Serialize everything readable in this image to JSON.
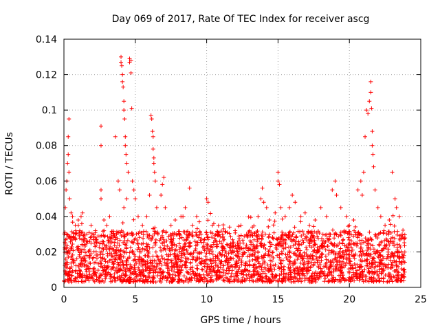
{
  "chart_data": {
    "type": "scatter",
    "title": "Day 069 of 2017, Rate Of TEC Index for receiver ascg",
    "xlabel": "GPS time / hours",
    "ylabel": "ROTI / TECUs",
    "xlim": [
      0,
      25
    ],
    "ylim": [
      0,
      0.14
    ],
    "xticks": [
      0,
      5,
      10,
      15,
      20,
      25
    ],
    "yticks": [
      0,
      0.02,
      0.04,
      0.06,
      0.08,
      0.1,
      0.12,
      0.14
    ],
    "xtick_labels": [
      "0",
      "5",
      "10",
      "15",
      "20",
      "25"
    ],
    "ytick_labels": [
      "0",
      "0.02",
      "0.04",
      "0.06",
      "0.08",
      "0.1",
      "0.12",
      "0.14"
    ],
    "grid": true,
    "marker": "plus",
    "color": "#ff0000",
    "series": [
      {
        "name": "ROTI",
        "points": [
          [
            0.1,
            0.045
          ],
          [
            0.15,
            0.055
          ],
          [
            0.2,
            0.06
          ],
          [
            0.25,
            0.07
          ],
          [
            0.3,
            0.075
          ],
          [
            0.3,
            0.085
          ],
          [
            0.35,
            0.095
          ],
          [
            0.35,
            0.065
          ],
          [
            0.4,
            0.05
          ],
          [
            0.5,
            0.042
          ],
          [
            0.6,
            0.04
          ],
          [
            0.8,
            0.035
          ],
          [
            1.0,
            0.038
          ],
          [
            1.2,
            0.04
          ],
          [
            1.3,
            0.042
          ],
          [
            1.6,
            0.03
          ],
          [
            1.9,
            0.035
          ],
          [
            2.2,
            0.032
          ],
          [
            2.6,
            0.091
          ],
          [
            2.6,
            0.08
          ],
          [
            2.6,
            0.055
          ],
          [
            2.6,
            0.05
          ],
          [
            2.8,
            0.038
          ],
          [
            3.0,
            0.035
          ],
          [
            3.2,
            0.04
          ],
          [
            3.6,
            0.085
          ],
          [
            3.8,
            0.06
          ],
          [
            3.9,
            0.055
          ],
          [
            4.0,
            0.13
          ],
          [
            4.0,
            0.127
          ],
          [
            4.05,
            0.125
          ],
          [
            4.1,
            0.12
          ],
          [
            4.1,
            0.116
          ],
          [
            4.15,
            0.113
          ],
          [
            4.2,
            0.105
          ],
          [
            4.2,
            0.1
          ],
          [
            4.25,
            0.095
          ],
          [
            4.3,
            0.085
          ],
          [
            4.3,
            0.08
          ],
          [
            4.35,
            0.075
          ],
          [
            4.4,
            0.07
          ],
          [
            4.5,
            0.065
          ],
          [
            4.4,
            0.05
          ],
          [
            4.2,
            0.045
          ],
          [
            4.6,
            0.129
          ],
          [
            4.6,
            0.127
          ],
          [
            4.7,
            0.128
          ],
          [
            4.7,
            0.121
          ],
          [
            4.75,
            0.101
          ],
          [
            4.8,
            0.06
          ],
          [
            4.9,
            0.055
          ],
          [
            5.0,
            0.05
          ],
          [
            5.2,
            0.04
          ],
          [
            5.5,
            0.035
          ],
          [
            5.8,
            0.04
          ],
          [
            6.0,
            0.052
          ],
          [
            6.1,
            0.097
          ],
          [
            6.15,
            0.095
          ],
          [
            6.2,
            0.088
          ],
          [
            6.25,
            0.085
          ],
          [
            6.25,
            0.078
          ],
          [
            6.3,
            0.073
          ],
          [
            6.3,
            0.07
          ],
          [
            6.35,
            0.065
          ],
          [
            6.4,
            0.06
          ],
          [
            6.5,
            0.045
          ],
          [
            6.8,
            0.052
          ],
          [
            6.9,
            0.058
          ],
          [
            7.0,
            0.062
          ],
          [
            7.1,
            0.045
          ],
          [
            7.5,
            0.035
          ],
          [
            7.8,
            0.038
          ],
          [
            8.2,
            0.04
          ],
          [
            8.5,
            0.045
          ],
          [
            8.8,
            0.056
          ],
          [
            9.0,
            0.035
          ],
          [
            9.3,
            0.04
          ],
          [
            9.6,
            0.03
          ],
          [
            10.0,
            0.05
          ],
          [
            10.1,
            0.048
          ],
          [
            10.4,
            0.035
          ],
          [
            10.8,
            0.03
          ],
          [
            11.2,
            0.033
          ],
          [
            11.6,
            0.034
          ],
          [
            12.0,
            0.032
          ],
          [
            12.4,
            0.035
          ],
          [
            12.8,
            0.03
          ],
          [
            13.2,
            0.034
          ],
          [
            13.6,
            0.04
          ],
          [
            13.8,
            0.05
          ],
          [
            13.9,
            0.056
          ],
          [
            14.0,
            0.048
          ],
          [
            14.2,
            0.045
          ],
          [
            14.4,
            0.038
          ],
          [
            14.8,
            0.042
          ],
          [
            15.0,
            0.06
          ],
          [
            15.0,
            0.065
          ],
          [
            15.1,
            0.058
          ],
          [
            15.2,
            0.045
          ],
          [
            15.5,
            0.04
          ],
          [
            15.8,
            0.045
          ],
          [
            16.0,
            0.052
          ],
          [
            16.2,
            0.048
          ],
          [
            16.6,
            0.04
          ],
          [
            16.9,
            0.042
          ],
          [
            17.2,
            0.035
          ],
          [
            17.6,
            0.038
          ],
          [
            18.0,
            0.045
          ],
          [
            18.4,
            0.04
          ],
          [
            18.8,
            0.055
          ],
          [
            19.0,
            0.06
          ],
          [
            19.1,
            0.052
          ],
          [
            19.4,
            0.045
          ],
          [
            19.8,
            0.04
          ],
          [
            20.0,
            0.035
          ],
          [
            20.3,
            0.038
          ],
          [
            20.6,
            0.055
          ],
          [
            20.8,
            0.06
          ],
          [
            20.9,
            0.052
          ],
          [
            21.0,
            0.065
          ],
          [
            21.1,
            0.085
          ],
          [
            21.2,
            0.1
          ],
          [
            21.3,
            0.098
          ],
          [
            21.4,
            0.105
          ],
          [
            21.5,
            0.116
          ],
          [
            21.5,
            0.11
          ],
          [
            21.55,
            0.101
          ],
          [
            21.6,
            0.088
          ],
          [
            21.6,
            0.08
          ],
          [
            21.65,
            0.075
          ],
          [
            21.7,
            0.068
          ],
          [
            21.8,
            0.055
          ],
          [
            22.0,
            0.045
          ],
          [
            22.2,
            0.04
          ],
          [
            22.5,
            0.035
          ],
          [
            22.8,
            0.038
          ],
          [
            23.0,
            0.065
          ],
          [
            23.2,
            0.05
          ],
          [
            23.3,
            0.045
          ],
          [
            23.5,
            0.04
          ],
          [
            23.7,
            0.03
          ]
        ]
      }
    ],
    "background_band": {
      "x_start": 0.0,
      "x_end": 23.9,
      "y_low": 0.003,
      "y_high": 0.032,
      "description": "dense cloud of ROTI samples between about 0.003 and 0.03 TECU/min across the whole day"
    }
  }
}
